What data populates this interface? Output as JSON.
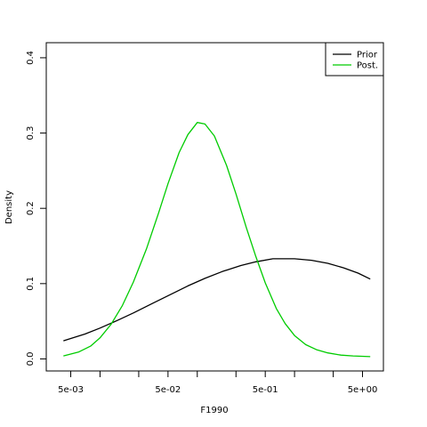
{
  "chart_data": {
    "type": "line",
    "title": "",
    "xlabel": "F1990",
    "ylabel": "Density",
    "x_scale": "log",
    "xlim": [
      0.0028,
      8.2
    ],
    "ylim": [
      -0.016,
      0.42
    ],
    "x_ticks": [
      0.005,
      0.05,
      0.5,
      5
    ],
    "x_tick_labels": [
      "5e-03",
      "5e-02",
      "5e-01",
      "5e+00"
    ],
    "x_minor_ticks": [
      0.0025,
      0.01,
      0.025,
      0.1,
      0.25,
      1,
      2.5,
      10
    ],
    "y_ticks": [
      0.0,
      0.1,
      0.2,
      0.3,
      0.4
    ],
    "y_tick_labels": [
      "0.0",
      "0.1",
      "0.2",
      "0.3",
      "0.4"
    ],
    "grid": false,
    "legend_position": "top-right",
    "series": [
      {
        "name": "Prior",
        "color": "#000000",
        "x": [
          0.0042,
          0.007,
          0.01,
          0.015,
          0.022,
          0.035,
          0.05,
          0.08,
          0.12,
          0.18,
          0.28,
          0.4,
          0.6,
          0.8,
          1.0,
          1.5,
          2.2,
          3.2,
          4.5,
          6.0
        ],
        "y": [
          0.024,
          0.033,
          0.041,
          0.051,
          0.061,
          0.074,
          0.084,
          0.097,
          0.107,
          0.116,
          0.124,
          0.129,
          0.133,
          0.133,
          0.133,
          0.131,
          0.127,
          0.121,
          0.114,
          0.106
        ]
      },
      {
        "name": "Post.",
        "color": "#00cc00",
        "x": [
          0.0042,
          0.006,
          0.008,
          0.01,
          0.013,
          0.017,
          0.022,
          0.03,
          0.04,
          0.05,
          0.065,
          0.08,
          0.1,
          0.12,
          0.15,
          0.2,
          0.25,
          0.32,
          0.4,
          0.5,
          0.65,
          0.8,
          1.0,
          1.3,
          1.7,
          2.2,
          3.0,
          4.0,
          6.0
        ],
        "y": [
          0.004,
          0.009,
          0.017,
          0.028,
          0.046,
          0.071,
          0.102,
          0.146,
          0.194,
          0.233,
          0.274,
          0.298,
          0.314,
          0.312,
          0.296,
          0.257,
          0.219,
          0.174,
          0.136,
          0.101,
          0.067,
          0.047,
          0.031,
          0.019,
          0.012,
          0.008,
          0.005,
          0.004,
          0.003
        ]
      }
    ]
  }
}
